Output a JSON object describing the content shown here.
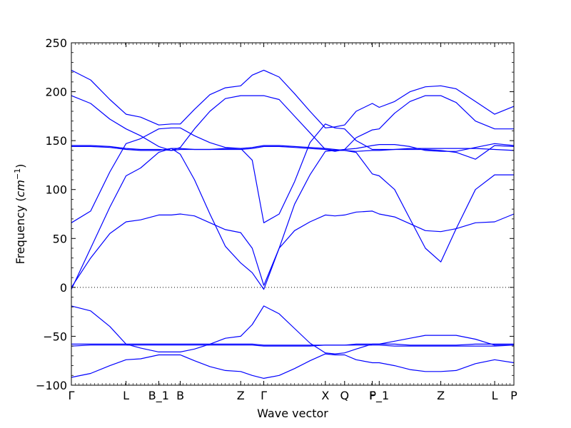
{
  "chart_data": {
    "type": "line",
    "xlabel": "Wave vector",
    "ylabel": "Frequency",
    "ylabel_unit_base": "cm",
    "ylabel_unit_exp": "−1",
    "ylim": [
      -100,
      250
    ],
    "yticks": [
      "250",
      "200",
      "150",
      "100",
      "50",
      "0",
      "−50",
      "−100"
    ],
    "ytick_values": [
      250,
      200,
      150,
      100,
      50,
      0,
      -50,
      -100
    ],
    "xlim": [
      0,
      11.5
    ],
    "xticks": [
      {
        "label": "Γ",
        "x": 0
      },
      {
        "label": "L",
        "x": 1.42
      },
      {
        "label": "B_1",
        "x": 2.27
      },
      {
        "label": "B",
        "x": 2.83
      },
      {
        "label": "Z",
        "x": 4.4
      },
      {
        "label": "Γ",
        "x": 5.0
      },
      {
        "label": "X",
        "x": 6.6
      },
      {
        "label": "Q",
        "x": 7.1
      },
      {
        "label": "F",
        "x": 7.82
      },
      {
        "label": "P_1",
        "x": 8.0
      },
      {
        "label": "Z",
        "x": 9.6
      },
      {
        "label": "L",
        "x": 11.0
      },
      {
        "label": "P",
        "x": 11.5
      }
    ],
    "zero_line": true,
    "series_color": "#0000ff",
    "series": [
      {
        "x": [
          0,
          0.5,
          1.0,
          1.42,
          1.8,
          2.27,
          2.6,
          2.83,
          3.2,
          3.6,
          4.0,
          4.4,
          4.7,
          5.0,
          5.4,
          5.8,
          6.2,
          6.6,
          6.85,
          7.1,
          7.4,
          7.82,
          8.0,
          8.4,
          8.8,
          9.2,
          9.6,
          10.0,
          10.5,
          11.0,
          11.5
        ],
        "y": [
          -2,
          40,
          82,
          114,
          122,
          138,
          142,
          136,
          110,
          75,
          42,
          25,
          15,
          -2,
          40,
          85,
          115,
          139,
          140,
          140,
          138,
          116,
          114,
          100,
          70,
          40,
          26,
          60,
          100,
          115,
          115
        ]
      },
      {
        "x": [
          0,
          0.5,
          1.0,
          1.42,
          1.8,
          2.27,
          2.6,
          2.83,
          3.2,
          3.6,
          4.0,
          4.4,
          4.7,
          5.0,
          5.4,
          5.8,
          6.2,
          6.6,
          6.85,
          7.1,
          7.4,
          7.82,
          8.0,
          8.4,
          8.8,
          9.2,
          9.6,
          10.0,
          10.5,
          11.0,
          11.5
        ],
        "y": [
          0,
          30,
          55,
          67,
          69,
          74,
          74,
          75,
          73,
          66,
          59,
          56,
          40,
          2,
          40,
          58,
          67,
          74,
          73,
          74,
          77,
          78,
          75,
          72,
          65,
          58,
          57,
          60,
          66,
          67,
          75
        ]
      },
      {
        "x": [
          0,
          0.5,
          1.0,
          1.42,
          1.8,
          2.27,
          2.6,
          2.83,
          3.2,
          3.6,
          4.0,
          4.4,
          4.7,
          5.0,
          5.4,
          5.8,
          6.2,
          6.6,
          6.85,
          7.1,
          7.4,
          7.82,
          8.0,
          8.4,
          8.8,
          9.2,
          9.6,
          10.0,
          10.5,
          11.0,
          11.5
        ],
        "y": [
          66,
          78,
          118,
          147,
          152,
          162,
          163,
          163,
          155,
          148,
          143,
          142,
          130,
          66,
          75,
          108,
          148,
          167,
          163,
          162,
          150,
          141,
          141,
          141,
          141,
          141,
          140,
          138,
          131,
          145,
          144
        ]
      },
      {
        "x": [
          0,
          0.5,
          1.0,
          1.42,
          1.8,
          2.27,
          2.6,
          2.83,
          3.2,
          3.6,
          4.0,
          4.4,
          4.7,
          5.0,
          5.4,
          5.8,
          6.2,
          6.6,
          6.85,
          7.1,
          7.4,
          7.82,
          8.0,
          8.4,
          8.8,
          9.2,
          9.6,
          10.0,
          10.5,
          11.0,
          11.5
        ],
        "y": [
          196,
          188,
          172,
          162,
          155,
          144,
          140,
          143,
          162,
          180,
          193,
          196,
          196,
          196,
          192,
          175,
          158,
          141,
          139,
          141,
          153,
          161,
          162,
          178,
          190,
          196,
          196,
          189,
          170,
          162,
          162
        ]
      },
      {
        "x": [
          0,
          0.5,
          1.0,
          1.42,
          1.8,
          2.27,
          2.6,
          2.83,
          3.2,
          3.6,
          4.0,
          4.4,
          4.7,
          5.0,
          5.4,
          5.8,
          6.2,
          6.6,
          6.85,
          7.1,
          7.4,
          7.82,
          8.0,
          8.4,
          8.8,
          9.2,
          9.6,
          10.0,
          10.5,
          11.0,
          11.5
        ],
        "y": [
          222,
          212,
          192,
          177,
          174,
          166,
          167,
          167,
          182,
          197,
          204,
          206,
          217,
          222,
          215,
          198,
          180,
          163,
          164,
          166,
          180,
          188,
          184,
          190,
          200,
          205,
          206,
          203,
          190,
          177,
          185
        ]
      },
      {
        "x": [
          0,
          0.5,
          1.0,
          1.42,
          1.8,
          2.27,
          2.6,
          2.83,
          3.2,
          3.6,
          4.0,
          4.4,
          4.7,
          5.0,
          5.4,
          5.8,
          6.2,
          6.6,
          6.85,
          7.1,
          7.4,
          7.82,
          8.0,
          8.4,
          8.8,
          9.2,
          9.6,
          10.0,
          10.5,
          11.0,
          11.5
        ],
        "y": [
          145,
          145,
          144,
          142,
          141,
          141,
          140,
          141,
          141,
          141,
          142,
          142,
          143,
          145,
          145,
          144,
          143,
          142,
          141,
          140,
          139,
          140,
          140,
          141,
          142,
          142,
          142,
          142,
          142,
          141,
          140
        ]
      },
      {
        "x": [
          0,
          0.5,
          1.0,
          1.42,
          1.8,
          2.27,
          2.6,
          2.83,
          3.2,
          3.6,
          4.0,
          4.4,
          4.7,
          5.0,
          5.4,
          5.8,
          6.2,
          6.6,
          6.85,
          7.1,
          7.4,
          7.82,
          8.0,
          8.4,
          8.8,
          9.2,
          9.6,
          10.0,
          10.5,
          11.0,
          11.5
        ],
        "y": [
          144,
          144,
          143,
          141,
          140,
          140,
          142,
          142,
          141,
          141,
          141,
          141,
          142,
          144,
          144,
          143,
          142,
          141,
          140,
          141,
          142,
          145,
          146,
          146,
          144,
          140,
          139,
          139,
          143,
          147,
          145
        ]
      },
      {
        "x": [
          0,
          0.5,
          1.0,
          1.42,
          1.8,
          2.27,
          2.6,
          2.83,
          3.2,
          3.6,
          4.0,
          4.4,
          4.7,
          5.0,
          5.4,
          5.8,
          6.2,
          6.6,
          6.85,
          7.1,
          7.4,
          7.82,
          8.0,
          8.4,
          8.8,
          9.2,
          9.6,
          10.0,
          10.5,
          11.0,
          11.5
        ],
        "y": [
          -19,
          -24,
          -40,
          -58,
          -62,
          -66,
          -66,
          -66,
          -63,
          -58,
          -52,
          -50,
          -38,
          -19,
          -27,
          -42,
          -57,
          -67,
          -68,
          -67,
          -63,
          -58,
          -58,
          -55,
          -52,
          -49,
          -49,
          -49,
          -53,
          -59,
          -59
        ]
      },
      {
        "x": [
          0,
          0.5,
          1.0,
          1.42,
          1.8,
          2.27,
          2.6,
          2.83,
          3.2,
          3.6,
          4.0,
          4.4,
          4.7,
          5.0,
          5.4,
          5.8,
          6.2,
          6.6,
          6.85,
          7.1,
          7.4,
          7.82,
          8.0,
          8.4,
          8.8,
          9.2,
          9.6,
          10.0,
          10.5,
          11.0,
          11.5
        ],
        "y": [
          -58,
          -58,
          -58,
          -58,
          -58,
          -58,
          -58,
          -58,
          -58,
          -58,
          -58,
          -58,
          -58,
          -59,
          -59,
          -59,
          -59,
          -59,
          -59,
          -59,
          -58,
          -58,
          -58,
          -58,
          -59,
          -59,
          -59,
          -59,
          -58,
          -58,
          -58
        ]
      },
      {
        "x": [
          0,
          0.5,
          1.0,
          1.42,
          1.8,
          2.27,
          2.6,
          2.83,
          3.2,
          3.6,
          4.0,
          4.4,
          4.7,
          5.0,
          5.4,
          5.8,
          6.2,
          6.6,
          6.85,
          7.1,
          7.4,
          7.82,
          8.0,
          8.4,
          8.8,
          9.2,
          9.6,
          10.0,
          10.5,
          11.0,
          11.5
        ],
        "y": [
          -60,
          -59,
          -59,
          -59,
          -59,
          -59,
          -59,
          -59,
          -59,
          -59,
          -59,
          -59,
          -59,
          -60,
          -60,
          -60,
          -60,
          -59,
          -59,
          -59,
          -59,
          -59,
          -59,
          -60,
          -60,
          -60,
          -60,
          -60,
          -60,
          -60,
          -59
        ]
      },
      {
        "x": [
          0,
          0.5,
          1.0,
          1.42,
          1.8,
          2.27,
          2.6,
          2.83,
          3.2,
          3.6,
          4.0,
          4.4,
          4.7,
          5.0,
          5.4,
          5.8,
          6.2,
          6.6,
          6.85,
          7.1,
          7.4,
          7.82,
          8.0,
          8.4,
          8.8,
          9.2,
          9.6,
          10.0,
          10.5,
          11.0,
          11.5
        ],
        "y": [
          -92,
          -88,
          -80,
          -74,
          -73,
          -69,
          -69,
          -69,
          -75,
          -81,
          -85,
          -86,
          -90,
          -93,
          -90,
          -83,
          -75,
          -68,
          -69,
          -69,
          -74,
          -77,
          -77,
          -80,
          -84,
          -86,
          -86,
          -85,
          -78,
          -74,
          -77
        ]
      }
    ]
  }
}
